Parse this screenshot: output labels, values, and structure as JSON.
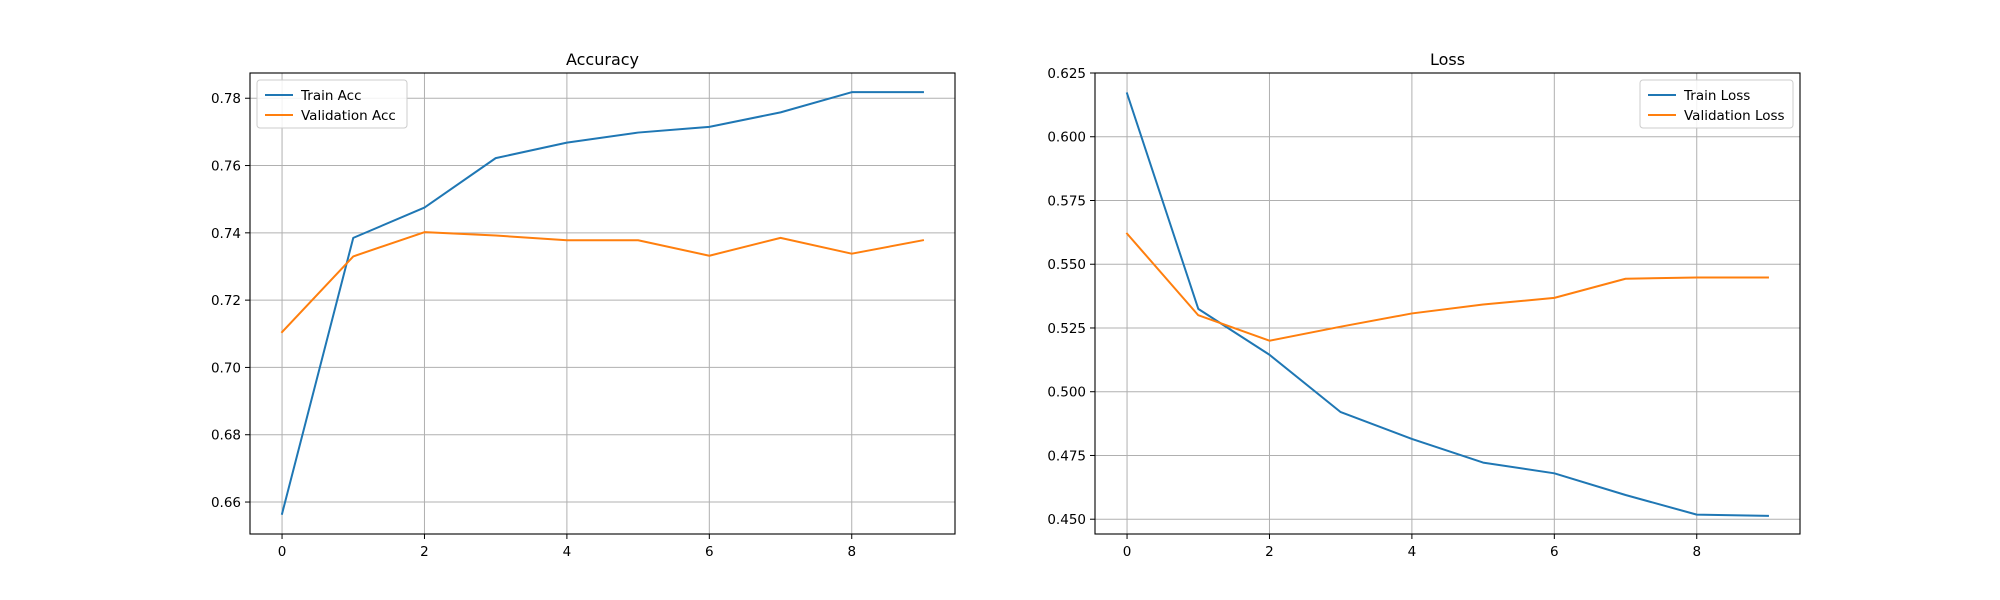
{
  "chart_data": [
    {
      "type": "line",
      "title": "Accuracy",
      "xlabel": "",
      "ylabel": "",
      "x": [
        0,
        1,
        2,
        3,
        4,
        5,
        6,
        7,
        8,
        9
      ],
      "xlim": [
        -0.45,
        9.45
      ],
      "ylim": [
        0.6505,
        0.7875
      ],
      "xticks": [
        0,
        2,
        4,
        6,
        8
      ],
      "yticks": [
        0.66,
        0.68,
        0.7,
        0.72,
        0.74,
        0.76,
        0.78
      ],
      "ytick_labels": [
        "0.66",
        "0.68",
        "0.70",
        "0.72",
        "0.74",
        "0.76",
        "0.78"
      ],
      "grid": true,
      "legend_position": "top-left",
      "series": [
        {
          "name": "Train Acc",
          "color": "#1f77b4",
          "values": [
            0.6565,
            0.7385,
            0.7475,
            0.7622,
            0.7668,
            0.7698,
            0.7715,
            0.7758,
            0.7818,
            0.7818
          ]
        },
        {
          "name": "Validation Acc",
          "color": "#ff7f0e",
          "values": [
            0.7105,
            0.733,
            0.7402,
            0.7392,
            0.7378,
            0.7378,
            0.7332,
            0.7385,
            0.7338,
            0.7378
          ]
        }
      ]
    },
    {
      "type": "line",
      "title": "Loss",
      "xlabel": "",
      "ylabel": "",
      "x": [
        0,
        1,
        2,
        3,
        4,
        5,
        6,
        7,
        8,
        9
      ],
      "xlim": [
        -0.45,
        9.45
      ],
      "ylim": [
        0.4442,
        0.625
      ],
      "xticks": [
        0,
        2,
        4,
        6,
        8
      ],
      "yticks": [
        0.45,
        0.475,
        0.5,
        0.525,
        0.55,
        0.575,
        0.6,
        0.625
      ],
      "ytick_labels": [
        "0.450",
        "0.475",
        "0.500",
        "0.525",
        "0.550",
        "0.575",
        "0.600",
        "0.625"
      ],
      "grid": true,
      "legend_position": "top-right",
      "series": [
        {
          "name": "Train Loss",
          "color": "#1f77b4",
          "values": [
            0.617,
            0.5325,
            0.5145,
            0.492,
            0.4815,
            0.4722,
            0.468,
            0.4595,
            0.4518,
            0.4513
          ]
        },
        {
          "name": "Validation Loss",
          "color": "#ff7f0e",
          "values": [
            0.562,
            0.53,
            0.52,
            0.5255,
            0.5307,
            0.5342,
            0.5368,
            0.5443,
            0.5448,
            0.5448
          ]
        }
      ]
    }
  ]
}
